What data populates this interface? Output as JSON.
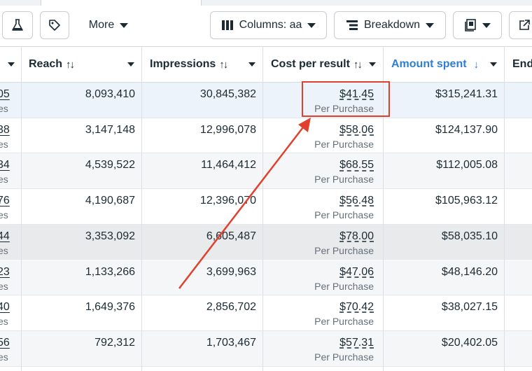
{
  "toolbar": {
    "more_label": "More",
    "columns_label": "Columns: aa",
    "breakdown_label": "Breakdown"
  },
  "columns": {
    "reach": "Reach",
    "impressions": "Impressions",
    "cost_per_result": "Cost per result",
    "amount_spent": "Amount spent",
    "ends": "End"
  },
  "rows": [
    {
      "left": "05",
      "left_sub": "es",
      "reach": "8,093,410",
      "impressions": "30,845,382",
      "cost": "$41.45",
      "cost_sub": "Per Purchase",
      "spent": "$315,241.31"
    },
    {
      "left": "38",
      "left_sub": "es",
      "reach": "3,147,148",
      "impressions": "12,996,078",
      "cost": "$58.06",
      "cost_sub": "Per Purchase",
      "spent": "$124,137.90"
    },
    {
      "left": "34",
      "left_sub": "es",
      "reach": "4,539,522",
      "impressions": "11,464,412",
      "cost": "$68.55",
      "cost_sub": "Per Purchase",
      "spent": "$112,005.08"
    },
    {
      "left": "76",
      "left_sub": "es",
      "reach": "4,190,687",
      "impressions": "12,396,070",
      "cost": "$56.48",
      "cost_sub": "Per Purchase",
      "spent": "$105,963.12"
    },
    {
      "left": "44",
      "left_sub": "es",
      "reach": "3,353,092",
      "impressions": "6,605,487",
      "cost": "$78.00",
      "cost_sub": "Per Purchase",
      "spent": "$58,035.10"
    },
    {
      "left": "23",
      "left_sub": "es",
      "reach": "1,133,266",
      "impressions": "3,699,963",
      "cost": "$47.06",
      "cost_sub": "Per Purchase",
      "spent": "$48,146.20"
    },
    {
      "left": "40",
      "left_sub": "es",
      "reach": "1,649,376",
      "impressions": "2,856,702",
      "cost": "$70.42",
      "cost_sub": "Per Purchase",
      "spent": "$38,027.15"
    },
    {
      "left": "56",
      "left_sub": "es",
      "reach": "792,312",
      "impressions": "1,703,467",
      "cost": "$57.31",
      "cost_sub": "Per Purchase",
      "spent": "$20,402.05"
    }
  ],
  "colors": {
    "accent": "#2d7ed6",
    "annotation": "#e0402c",
    "selected_row": "#edf3fb",
    "alt_row": "#f5f6f7"
  }
}
